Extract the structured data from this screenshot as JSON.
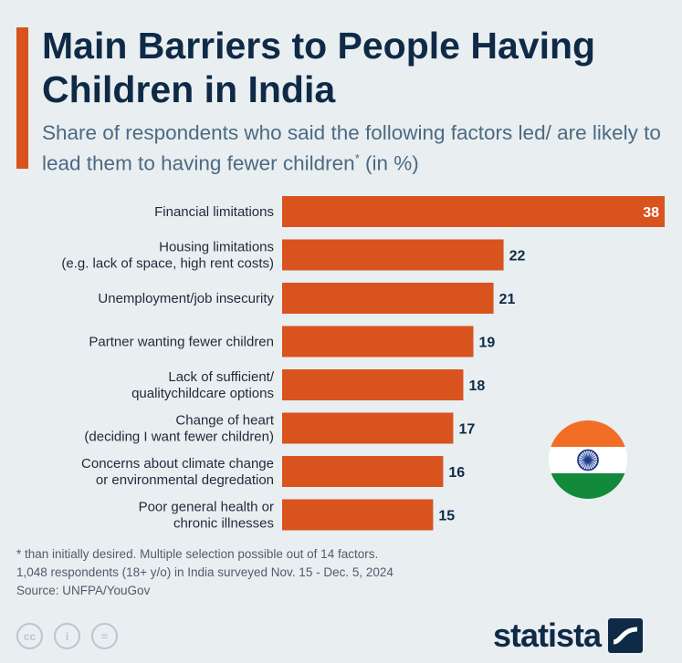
{
  "header": {
    "title": "Main Barriers to People Having Children in India",
    "subtitle": "Share of respondents who said the following factors led/ are likely to lead them to having fewer children",
    "subtitle_marker": "*",
    "subtitle_unit": " (in %)"
  },
  "chart_data": {
    "type": "bar",
    "orientation": "horizontal",
    "title": "Main Barriers to People Having Children in India",
    "unit": "%",
    "categories": [
      [
        "Financial limitations"
      ],
      [
        "Housing limitations",
        "(e.g. lack of space, high rent costs)"
      ],
      [
        "Unemployment/job insecurity"
      ],
      [
        "Partner wanting fewer children"
      ],
      [
        "Lack of sufficient/",
        "qualitychildcare options"
      ],
      [
        "Change of heart",
        "(deciding I want fewer children)"
      ],
      [
        "Concerns about climate change",
        "or environmental degredation"
      ],
      [
        "Poor general health or",
        "chronic illnesses"
      ]
    ],
    "values": [
      38,
      22,
      21,
      19,
      18,
      17,
      16,
      15
    ],
    "xlim": [
      0,
      38
    ],
    "bar_color": "#d9531e"
  },
  "footer": {
    "footnote_lines": [
      "* than initially desired. Multiple selection possible out of 14 factors.",
      "1,048 respondents (18+ y/o) in India surveyed Nov. 15 - Dec. 5, 2024"
    ],
    "source": "Source: UNFPA/YouGov",
    "license_icons": [
      "cc-icon",
      "attribution-icon",
      "no-derivatives-icon"
    ],
    "license_glyphs": [
      "cc",
      "i",
      "="
    ],
    "brand": "statista"
  },
  "flag": {
    "country": "India",
    "colors": {
      "saffron": "#f26d25",
      "white": "#ffffff",
      "green": "#138a3b",
      "chakra": "#1d3a8c"
    }
  }
}
